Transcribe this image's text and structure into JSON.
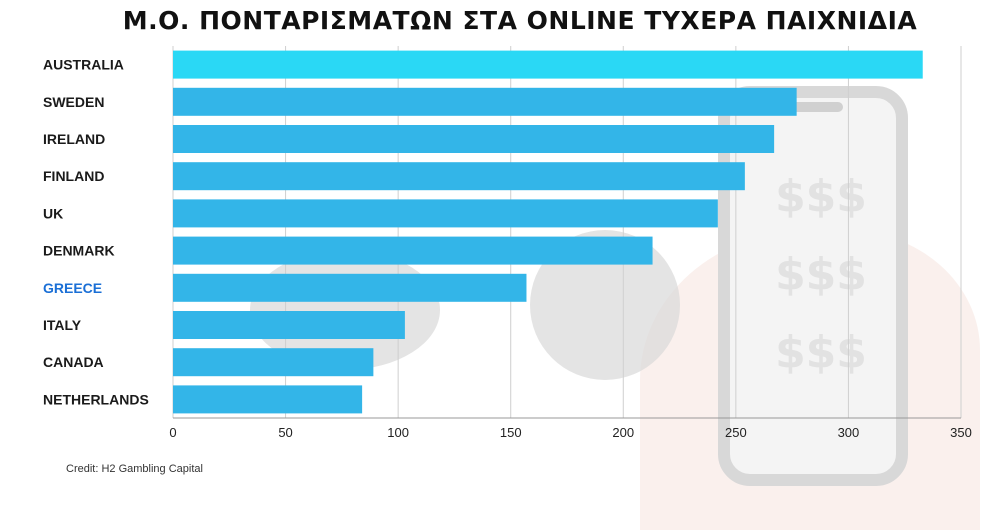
{
  "title": "Μ.Ο. ΠΟΝΤΑΡΙΣΜΑΤΩΝ ΣΤΑ ONLINE ΤΥΧΕΡΑ ΠΑΙΧΝΙΔΙΑ",
  "credit": "Credit: H2 Gambling Capital",
  "phone_glyphs": [
    "$$$",
    "$$$",
    "$$$"
  ],
  "colors": {
    "bar": "#33b5e8",
    "bar_top": "#2ad8f5",
    "highlight_label": "#1a6fd6",
    "label": "#1a1a1a",
    "grid": "#cfcfcf"
  },
  "chart_data": {
    "type": "bar",
    "orientation": "horizontal",
    "categories": [
      "AUSTRALIA",
      "SWEDEN",
      "IRELAND",
      "FINLAND",
      "UK",
      "DENMARK",
      "GREECE",
      "ITALY",
      "CANADA",
      "NETHERLANDS"
    ],
    "values": [
      333,
      277,
      267,
      254,
      242,
      213,
      157,
      103,
      89,
      84
    ],
    "highlight": "GREECE",
    "xlim": [
      0,
      350
    ],
    "xticks": [
      0,
      50,
      100,
      150,
      200,
      250,
      300,
      350
    ],
    "grid": true
  }
}
